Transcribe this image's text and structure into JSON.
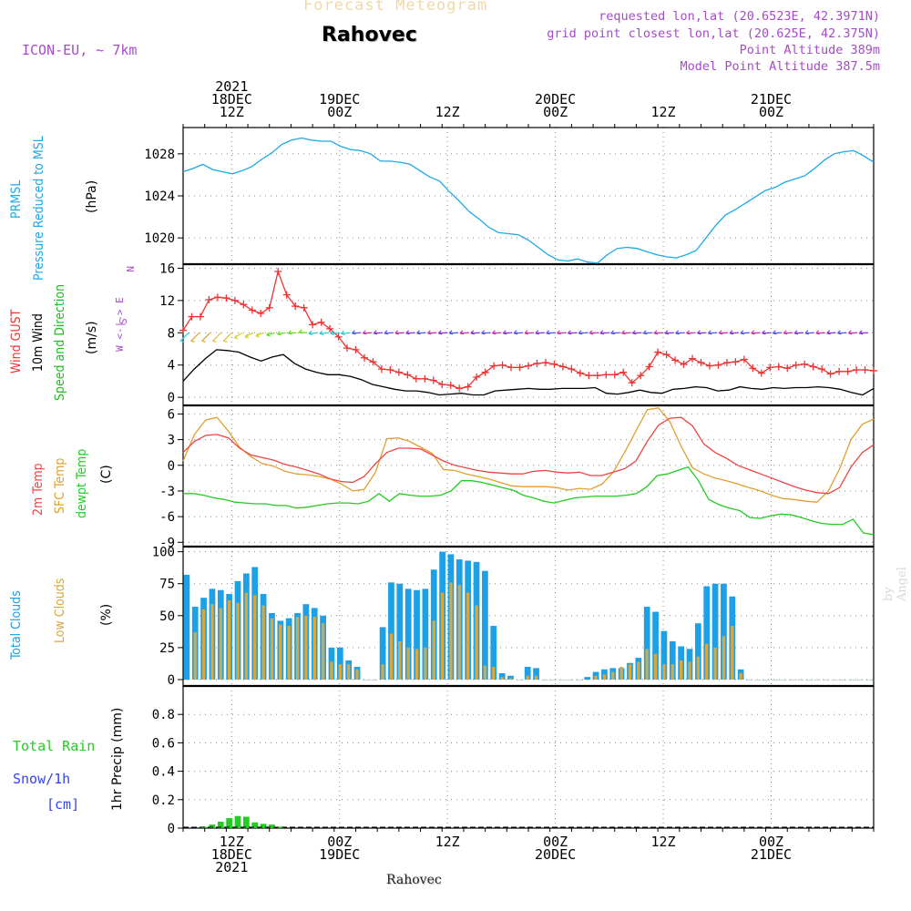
{
  "header": {
    "title": "Forecast Meteogram",
    "location": "Rahovec",
    "model": "ICON-EU, ~ 7km",
    "requested": "requested lon,lat (20.6523E, 42.3971N)",
    "grid_point": "grid point closest lon,lat (20.625E, 42.375N)",
    "point_altitude": "Point Altitude 389m",
    "model_altitude": "Model Point Altitude 387.5m",
    "watermark": "by Angel",
    "bottom_location": "Rahovec"
  },
  "colors": {
    "pressure": "#1ca9e8",
    "gust": "#ee3333",
    "wind": "#000000",
    "temp": "#ee4444",
    "sfc": "#e0a030",
    "dewpt": "#22cc22",
    "total_clouds": "#1ca0e6",
    "low_clouds": "#d8a840",
    "rain": "#22cc22",
    "snow": "#3344ee",
    "accent": "#a64ac9"
  },
  "chart_data": [
    {
      "type": "line",
      "panel": "pressure",
      "ylabel_lines": [
        "PRMSL",
        "Pressure Reduced to MSL"
      ],
      "unit": "(hPa)",
      "ylim": [
        1017.5,
        1030.5
      ],
      "yticks": [
        1020,
        1024,
        1028
      ],
      "x_range": [
        0,
        64
      ],
      "grid": true,
      "series": [
        {
          "name": "PRMSL",
          "values": [
            1026.3,
            1026.6,
            1027.0,
            1026.5,
            1026.3,
            1026.1,
            1026.4,
            1026.8,
            1027.5,
            1028.1,
            1028.9,
            1029.3,
            1029.5,
            1029.3,
            1029.2,
            1029.2,
            1028.7,
            1028.4,
            1028.3,
            1028.0,
            1027.3,
            1027.3,
            1027.2,
            1027.0,
            1026.4,
            1025.8,
            1025.4,
            1024.4,
            1023.5,
            1022.5,
            1021.8,
            1021.0,
            1020.5,
            1020.4,
            1020.3,
            1019.8,
            1019.1,
            1018.4,
            1017.9,
            1017.8,
            1018.0,
            1017.7,
            1017.6,
            1018.4,
            1019.0,
            1019.1,
            1019.0,
            1018.7,
            1018.4,
            1018.2,
            1018.1,
            1018.4,
            1018.8,
            1020.0,
            1021.2,
            1022.2,
            1022.7,
            1023.3,
            1023.9,
            1024.5,
            1024.8,
            1025.3,
            1025.6,
            1025.9,
            1026.6,
            1027.4,
            1028.0,
            1028.2,
            1028.3,
            1027.8,
            1027.2
          ]
        }
      ]
    },
    {
      "type": "line",
      "panel": "wind",
      "ylabel_lines": [
        "Wind GUST",
        "10m Wind",
        "Speed and Direction"
      ],
      "unit": "(m/s)",
      "compass": [
        "N",
        "W <-|-> E",
        "S"
      ],
      "ylim": [
        -1,
        16.5
      ],
      "yticks": [
        0,
        4,
        8,
        12,
        16
      ],
      "x_range": [
        0,
        64
      ],
      "grid": true,
      "series": [
        {
          "name": "Wind GUST",
          "values": [
            8.3,
            10.0,
            10.0,
            12.1,
            12.4,
            12.3,
            12.0,
            11.5,
            10.8,
            10.4,
            11.1,
            15.6,
            12.7,
            11.3,
            11.1,
            9.0,
            9.3,
            8.5,
            7.5,
            6.1,
            5.9,
            4.9,
            4.4,
            3.5,
            3.4,
            3.1,
            2.8,
            2.3,
            2.3,
            2.1,
            1.6,
            1.5,
            1.1,
            1.3,
            2.5,
            3.1,
            3.9,
            4.0,
            3.7,
            3.7,
            3.9,
            4.2,
            4.3,
            4.1,
            3.8,
            3.5,
            3.0,
            2.7,
            2.7,
            2.8,
            2.8,
            3.1,
            1.8,
            2.7,
            3.8,
            5.6,
            5.3,
            4.6,
            4.1,
            4.8,
            4.3,
            3.9,
            4.0,
            4.3,
            4.4,
            4.7,
            3.6,
            3.0,
            3.7,
            3.8,
            3.6,
            4.0,
            4.1,
            3.8,
            3.5,
            2.9,
            3.2,
            3.2,
            3.4,
            3.4,
            3.3
          ]
        },
        {
          "name": "10m Wind",
          "values": [
            2.0,
            3.5,
            4.8,
            5.9,
            5.8,
            5.6,
            5.0,
            4.5,
            5.0,
            5.3,
            4.2,
            3.5,
            3.1,
            2.8,
            2.8,
            2.6,
            2.2,
            1.6,
            1.3,
            1.0,
            0.8,
            0.8,
            0.6,
            0.3,
            0.4,
            0.5,
            0.3,
            0.3,
            0.8,
            0.9,
            1.0,
            1.1,
            1.0,
            1.0,
            1.1,
            1.1,
            1.1,
            1.2,
            0.5,
            0.4,
            0.6,
            0.9,
            0.6,
            0.5,
            1.0,
            1.1,
            1.3,
            1.2,
            0.8,
            0.9,
            1.3,
            1.1,
            1.0,
            1.2,
            1.1,
            1.2,
            1.2,
            1.3,
            1.2,
            1.0,
            0.6,
            0.3,
            1.1
          ]
        }
      ]
    },
    {
      "type": "line",
      "panel": "temperature",
      "ylabel_lines": [
        "2m Temp",
        "SFC Temp",
        "dewpt Temp"
      ],
      "unit": "(C)",
      "ylim": [
        -9.5,
        7
      ],
      "yticks": [
        -9,
        -6,
        -3,
        0,
        3,
        6
      ],
      "x_range": [
        0,
        64
      ],
      "grid": true,
      "series": [
        {
          "name": "2m Temp",
          "values": [
            1.5,
            2.8,
            3.5,
            3.6,
            3.2,
            2.0,
            1.2,
            0.9,
            0.6,
            0.1,
            -0.2,
            -0.6,
            -1.0,
            -1.6,
            -1.9,
            -2.0,
            -1.3,
            0.2,
            1.5,
            2.0,
            2.0,
            1.9,
            1.2,
            0.5,
            0.0,
            -0.3,
            -0.6,
            -0.8,
            -0.9,
            -1.0,
            -1.0,
            -0.7,
            -0.6,
            -0.8,
            -0.9,
            -0.8,
            -1.2,
            -1.2,
            -0.8,
            -0.4,
            0.5,
            2.8,
            4.7,
            5.5,
            5.6,
            4.6,
            2.5,
            1.5,
            0.8,
            0.0,
            -0.5,
            -1.0,
            -1.5,
            -2.0,
            -2.5,
            -2.9,
            -3.2,
            -3.3,
            -2.6,
            -0.2,
            1.5,
            2.4
          ]
        },
        {
          "name": "SFC Temp",
          "values": [
            0.5,
            3.6,
            5.3,
            5.6,
            4.0,
            2.1,
            1.0,
            0.2,
            -0.1,
            -0.7,
            -1.0,
            -1.1,
            -1.3,
            -1.6,
            -2.2,
            -3.0,
            -2.8,
            -0.8,
            3.1,
            3.2,
            2.8,
            2.1,
            1.4,
            -0.5,
            -0.6,
            -1.0,
            -1.3,
            -1.6,
            -2.0,
            -2.4,
            -2.5,
            -2.5,
            -2.5,
            -2.6,
            -2.9,
            -2.7,
            -2.8,
            -2.2,
            -0.8,
            1.5,
            4.0,
            6.5,
            6.7,
            5.1,
            2.2,
            -0.3,
            -1.0,
            -1.5,
            -1.8,
            -2.2,
            -2.6,
            -3.0,
            -3.5,
            -3.9,
            -4.0,
            -4.2,
            -4.3,
            -3.0,
            -0.4,
            3.0,
            4.8,
            5.4
          ]
        },
        {
          "name": "dewpt Temp",
          "values": [
            -3.3,
            -3.3,
            -3.5,
            -3.8,
            -4.0,
            -4.3,
            -4.4,
            -4.5,
            -4.5,
            -4.7,
            -4.7,
            -5.0,
            -4.9,
            -4.7,
            -4.5,
            -4.4,
            -4.4,
            -4.5,
            -4.2,
            -3.3,
            -4.2,
            -3.3,
            -3.5,
            -3.6,
            -3.6,
            -3.5,
            -3.0,
            -1.8,
            -1.8,
            -2.0,
            -2.3,
            -2.6,
            -2.9,
            -3.5,
            -3.8,
            -4.2,
            -4.4,
            -4.1,
            -3.8,
            -3.7,
            -3.6,
            -3.6,
            -3.6,
            -3.5,
            -3.3,
            -2.5,
            -1.2,
            -1.0,
            -0.6,
            -0.2,
            -1.8,
            -4.0,
            -4.6,
            -5.0,
            -5.3,
            -6.1,
            -6.2,
            -5.9,
            -5.7,
            -5.8,
            -6.1,
            -6.5,
            -6.8,
            -6.9,
            -6.9,
            -6.3,
            -7.9,
            -8.1
          ]
        }
      ]
    },
    {
      "type": "bar",
      "panel": "clouds",
      "ylabel_lines": [
        "Total Clouds",
        "Low Clouds"
      ],
      "unit": "(%)",
      "ylim": [
        -5,
        104
      ],
      "yticks": [
        0,
        25,
        50,
        75,
        100
      ],
      "x_range": [
        0,
        64
      ],
      "grid": true,
      "series": [
        {
          "name": "Total Clouds",
          "values": [
            82,
            57,
            64,
            71,
            70,
            67,
            77,
            83,
            88,
            67,
            52,
            46,
            48,
            52,
            59,
            56,
            50,
            25,
            25,
            15,
            10,
            0,
            0,
            41,
            76,
            75,
            71,
            70,
            71,
            86,
            100,
            98,
            94,
            93,
            92,
            85,
            42,
            5,
            3,
            0,
            10,
            9,
            0,
            0,
            0,
            0,
            0,
            2,
            6,
            8,
            9,
            9,
            13,
            17,
            57,
            53,
            38,
            30,
            26,
            24,
            44,
            73,
            75,
            75,
            65,
            8,
            0,
            0,
            0,
            0,
            0,
            0,
            0,
            0,
            0,
            0,
            0,
            0,
            0,
            0,
            0
          ]
        },
        {
          "name": "Low Clouds",
          "values": [
            0,
            37,
            55,
            59,
            56,
            62,
            60,
            68,
            66,
            58,
            48,
            43,
            42,
            49,
            50,
            49,
            44,
            14,
            12,
            12,
            8,
            0,
            0,
            12,
            36,
            30,
            25,
            24,
            25,
            46,
            68,
            76,
            74,
            68,
            58,
            11,
            10,
            2,
            1,
            0,
            3,
            3,
            0,
            0,
            0,
            0,
            0,
            0,
            3,
            4,
            6,
            10,
            12,
            14,
            24,
            20,
            12,
            12,
            15,
            14,
            18,
            28,
            25,
            34,
            42,
            5,
            0,
            0,
            0,
            0,
            0,
            0,
            0,
            0,
            0,
            0,
            0,
            0,
            0,
            0,
            0
          ]
        }
      ]
    },
    {
      "type": "bar",
      "panel": "precip",
      "legend_lines": [
        "Total  Rain",
        "Snow/1h",
        "[cm]"
      ],
      "ylabel": "1hr Precip (mm)",
      "ylim": [
        0,
        1.0
      ],
      "yticks": [
        0,
        0.2,
        0.4,
        0.6,
        0.8
      ],
      "ytick_labels": [
        "0",
        "0.2",
        "0.4",
        "0.6",
        "0.8"
      ],
      "x_range": [
        0,
        64
      ],
      "grid": true,
      "series": [
        {
          "name": "Total Rain",
          "values": [
            0,
            0,
            0.01,
            0.025,
            0.045,
            0.07,
            0.085,
            0.08,
            0.04,
            0.03,
            0.025,
            0.01
          ]
        }
      ]
    }
  ],
  "time_axis": {
    "top_labels": [
      {
        "x": 4.5,
        "lines": [
          "2021",
          "18DEC",
          "12Z"
        ]
      },
      {
        "x": 14.5,
        "lines": [
          "19DEC",
          "00Z"
        ]
      },
      {
        "x": 24.5,
        "lines": [
          "12Z"
        ]
      },
      {
        "x": 34.5,
        "lines": [
          "20DEC",
          "00Z"
        ]
      },
      {
        "x": 44.5,
        "lines": [
          "12Z"
        ]
      },
      {
        "x": 54.5,
        "lines": [
          "21DEC",
          "00Z"
        ]
      }
    ],
    "bottom_labels": [
      {
        "x": 4.5,
        "lines": [
          "12Z",
          "18DEC",
          "2021"
        ]
      },
      {
        "x": 14.5,
        "lines": [
          "00Z",
          "19DEC"
        ]
      },
      {
        "x": 24.5,
        "lines": [
          "12Z"
        ]
      },
      {
        "x": 34.5,
        "lines": [
          "00Z",
          "20DEC"
        ]
      },
      {
        "x": 44.5,
        "lines": [
          "12Z"
        ]
      },
      {
        "x": 54.5,
        "lines": [
          "00Z",
          "21DEC"
        ]
      }
    ]
  }
}
